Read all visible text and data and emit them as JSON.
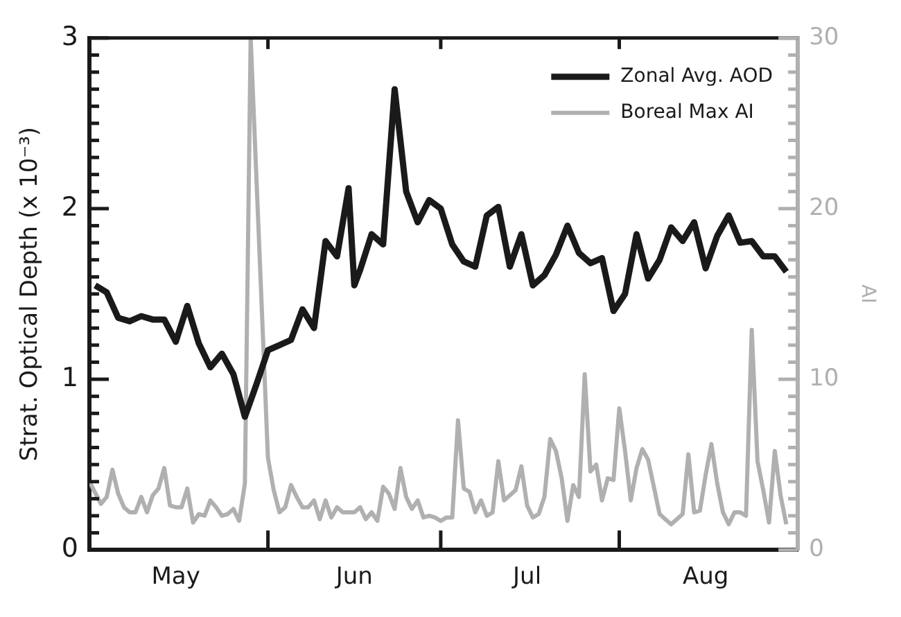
{
  "chart_data": {
    "type": "line",
    "ylabel": "Strat. Optical Depth (x 10⁻³)",
    "y2label": "AI",
    "legend": "top right",
    "marker": "none",
    "xlim": [
      "--05-01",
      "--09-01"
    ],
    "xticks": [
      {
        "value": "--05-16",
        "label": "May"
      },
      {
        "value": "--06-01",
        "label": null
      },
      {
        "value": "--06-16",
        "label": "Jun"
      },
      {
        "value": "--07-01",
        "label": null
      },
      {
        "value": "--07-16",
        "label": "Jul"
      },
      {
        "value": "--08-01",
        "label": null
      },
      {
        "value": "--08-16",
        "label": "Aug"
      }
    ],
    "ylim": [
      0,
      3
    ],
    "yticks": [
      0,
      {
        "value": 0.1,
        "label": null
      },
      {
        "value": 0.2,
        "label": null
      },
      {
        "value": 0.3,
        "label": null
      },
      {
        "value": 0.4,
        "label": null
      },
      {
        "value": 0.5,
        "label": null
      },
      {
        "value": 0.6,
        "label": null
      },
      {
        "value": 0.7,
        "label": null
      },
      {
        "value": 0.8,
        "label": null
      },
      {
        "value": 0.9,
        "label": null
      },
      1,
      {
        "value": 1.1,
        "label": null
      },
      {
        "value": 1.2,
        "label": null
      },
      {
        "value": 1.3,
        "label": null
      },
      {
        "value": 1.4,
        "label": null
      },
      {
        "value": 1.5,
        "label": null
      },
      {
        "value": 1.6,
        "label": null
      },
      {
        "value": 1.7,
        "label": null
      },
      {
        "value": 1.8,
        "label": null
      },
      {
        "value": 1.9,
        "label": null
      },
      2,
      {
        "value": 2.1,
        "label": null
      },
      {
        "value": 2.2,
        "label": null
      },
      {
        "value": 2.3,
        "label": null
      },
      {
        "value": 2.4,
        "label": null
      },
      {
        "value": 2.5,
        "label": null
      },
      {
        "value": 2.6,
        "label": null
      },
      {
        "value": 2.7,
        "label": null
      },
      {
        "value": 2.8,
        "label": null
      },
      {
        "value": 2.9,
        "label": null
      },
      3
    ],
    "y2lim": [
      0,
      30
    ],
    "y2ticks": [
      0,
      {
        "value": 1,
        "label": null
      },
      {
        "value": 2,
        "label": null
      },
      {
        "value": 3,
        "label": null
      },
      {
        "value": 4,
        "label": null
      },
      {
        "value": 5,
        "label": null
      },
      {
        "value": 6,
        "label": null
      },
      {
        "value": 7,
        "label": null
      },
      {
        "value": 8,
        "label": null
      },
      {
        "value": 9,
        "label": null
      },
      10,
      {
        "value": 11,
        "label": null
      },
      {
        "value": 12,
        "label": null
      },
      {
        "value": 13,
        "label": null
      },
      {
        "value": 14,
        "label": null
      },
      {
        "value": 15,
        "label": null
      },
      {
        "value": 16,
        "label": null
      },
      {
        "value": 17,
        "label": null
      },
      {
        "value": 18,
        "label": null
      },
      {
        "value": 19,
        "label": null
      },
      20,
      {
        "value": 21,
        "label": null
      },
      {
        "value": 22,
        "label": null
      },
      {
        "value": 23,
        "label": null
      },
      {
        "value": 24,
        "label": null
      },
      {
        "value": 25,
        "label": null
      },
      {
        "value": 26,
        "label": null
      },
      {
        "value": 27,
        "label": null
      },
      {
        "value": 28,
        "label": null
      },
      {
        "value": 29,
        "label": null
      },
      30
    ],
    "series": [
      {
        "name": "Zonal Avg. AOD",
        "color": "#1a1a1a",
        "x": [
          "--05-02",
          "--05-04",
          "--05-06",
          "--05-08",
          "--05-10",
          "--05-12",
          "--05-14",
          "--05-16",
          "--05-18",
          "--05-20",
          "--05-22",
          "--05-24",
          "--05-26",
          "--05-28",
          "--05-30",
          "--06-01",
          "--06-03",
          "--06-05",
          "--06-07",
          "--06-09",
          "--06-11",
          "--06-13",
          "--06-15",
          "--06-16",
          "--06-17",
          "--06-19",
          "--06-21",
          "--06-23",
          "--06-25",
          "--06-27",
          "--06-29",
          "--07-01",
          "--07-03",
          "--07-05",
          "--07-07",
          "--07-09",
          "--07-11",
          "--07-13",
          "--07-15",
          "--07-17",
          "--07-19",
          "--07-21",
          "--07-23",
          "--07-25",
          "--07-27",
          "--07-29",
          "--07-31",
          "--08-02",
          "--08-04",
          "--08-06",
          "--08-08",
          "--08-10",
          "--08-12",
          "--08-14",
          "--08-16",
          "--08-18",
          "--08-20",
          "--08-22",
          "--08-24",
          "--08-26",
          "--08-28",
          "--08-30"
        ],
        "values": [
          1.55,
          1.51,
          1.36,
          1.34,
          1.37,
          1.35,
          1.35,
          1.22,
          1.43,
          1.21,
          1.07,
          1.15,
          1.03,
          0.78,
          0.97,
          1.17,
          1.2,
          1.23,
          1.41,
          1.3,
          1.81,
          1.72,
          2.12,
          1.55,
          1.64,
          1.85,
          1.79,
          2.7,
          2.1,
          1.92,
          2.05,
          2.0,
          1.79,
          1.69,
          1.66,
          1.96,
          2.01,
          1.66,
          1.85,
          1.55,
          1.61,
          1.73,
          1.9,
          1.74,
          1.68,
          1.71,
          1.4,
          1.5,
          1.85,
          1.59,
          1.7,
          1.89,
          1.81,
          1.92,
          1.65,
          1.84,
          1.96,
          1.8,
          1.81,
          1.72,
          1.72,
          1.63
        ]
      },
      {
        "name": "Boreal Max AI",
        "color": "#b0b0b2",
        "axis": "y2",
        "x": [
          "--05-01",
          "--05-03",
          "--05-04",
          "--05-05",
          "--05-06",
          "--05-07",
          "--05-08",
          "--05-09",
          "--05-10",
          "--05-11",
          "--05-12",
          "--05-13",
          "--05-14",
          "--05-15",
          "--05-16",
          "--05-17",
          "--05-18",
          "--05-19",
          "--05-20",
          "--05-21",
          "--05-22",
          "--05-23",
          "--05-24",
          "--05-25",
          "--05-26",
          "--05-27",
          "--05-28",
          "--05-29",
          "--06-01",
          "--06-02",
          "--06-03",
          "--06-04",
          "--06-05",
          "--06-06",
          "--06-07",
          "--06-08",
          "--06-09",
          "--06-10",
          "--06-11",
          "--06-12",
          "--06-13",
          "--06-14",
          "--06-15",
          "--06-16",
          "--06-17",
          "--06-18",
          "--06-19",
          "--06-20",
          "--06-21",
          "--06-22",
          "--06-23",
          "--06-24",
          "--06-25",
          "--06-26",
          "--06-27",
          "--06-28",
          "--06-29",
          "--06-30",
          "--07-01",
          "--07-02",
          "--07-03",
          "--07-04",
          "--07-05",
          "--07-06",
          "--07-07",
          "--07-08",
          "--07-09",
          "--07-10",
          "--07-11",
          "--07-12",
          "--07-13",
          "--07-14",
          "--07-15",
          "--07-16",
          "--07-17",
          "--07-18",
          "--07-19",
          "--07-20",
          "--07-21",
          "--07-22",
          "--07-23",
          "--07-24",
          "--07-25",
          "--07-26",
          "--07-27",
          "--07-28",
          "--07-29",
          "--07-30",
          "--07-31",
          "--08-01",
          "--08-02",
          "--08-03",
          "--08-04",
          "--08-05",
          "--08-06",
          "--08-07",
          "--08-08",
          "--08-09",
          "--08-10",
          "--08-11",
          "--08-12",
          "--08-13",
          "--08-14",
          "--08-15",
          "--08-16",
          "--08-17",
          "--08-18",
          "--08-19",
          "--08-20",
          "--08-21",
          "--08-22",
          "--08-23",
          "--08-24",
          "--08-25",
          "--08-26",
          "--08-27",
          "--08-28",
          "--08-29",
          "--08-30"
        ],
        "values": [
          4.0,
          2.7,
          3.1,
          4.7,
          3.3,
          2.5,
          2.2,
          2.2,
          3.1,
          2.2,
          3.2,
          3.6,
          4.8,
          2.6,
          2.5,
          2.5,
          3.6,
          1.6,
          2.1,
          2.0,
          2.9,
          2.5,
          2.0,
          2.1,
          2.4,
          1.7,
          3.9,
          30,
          5.4,
          3.5,
          2.2,
          2.5,
          3.8,
          3.1,
          2.5,
          2.5,
          2.9,
          1.8,
          2.9,
          1.9,
          2.5,
          2.2,
          2.2,
          2.2,
          2.5,
          1.8,
          2.2,
          1.7,
          3.7,
          3.3,
          2.4,
          4.8,
          3.1,
          2.4,
          2.9,
          1.9,
          2.0,
          1.9,
          1.7,
          1.9,
          1.9,
          7.6,
          3.6,
          3.4,
          2.2,
          2.9,
          2.0,
          2.2,
          5.2,
          2.9,
          3.2,
          3.5,
          4.9,
          2.6,
          1.9,
          2.1,
          3.1,
          6.5,
          5.8,
          4.2,
          1.7,
          3.8,
          3.1,
          10.3,
          4.6,
          5.0,
          2.9,
          4.2,
          4.1,
          8.3,
          5.8,
          2.9,
          4.8,
          5.9,
          5.3,
          3.7,
          2.1,
          1.8,
          1.5,
          1.8,
          2.1,
          5.6,
          2.2,
          2.3,
          4.4,
          6.2,
          3.9,
          2.2,
          1.5,
          2.2,
          2.2,
          2.0,
          12.9,
          5.2,
          3.5,
          1.6,
          5.8,
          3.2,
          1.5
        ]
      }
    ]
  }
}
